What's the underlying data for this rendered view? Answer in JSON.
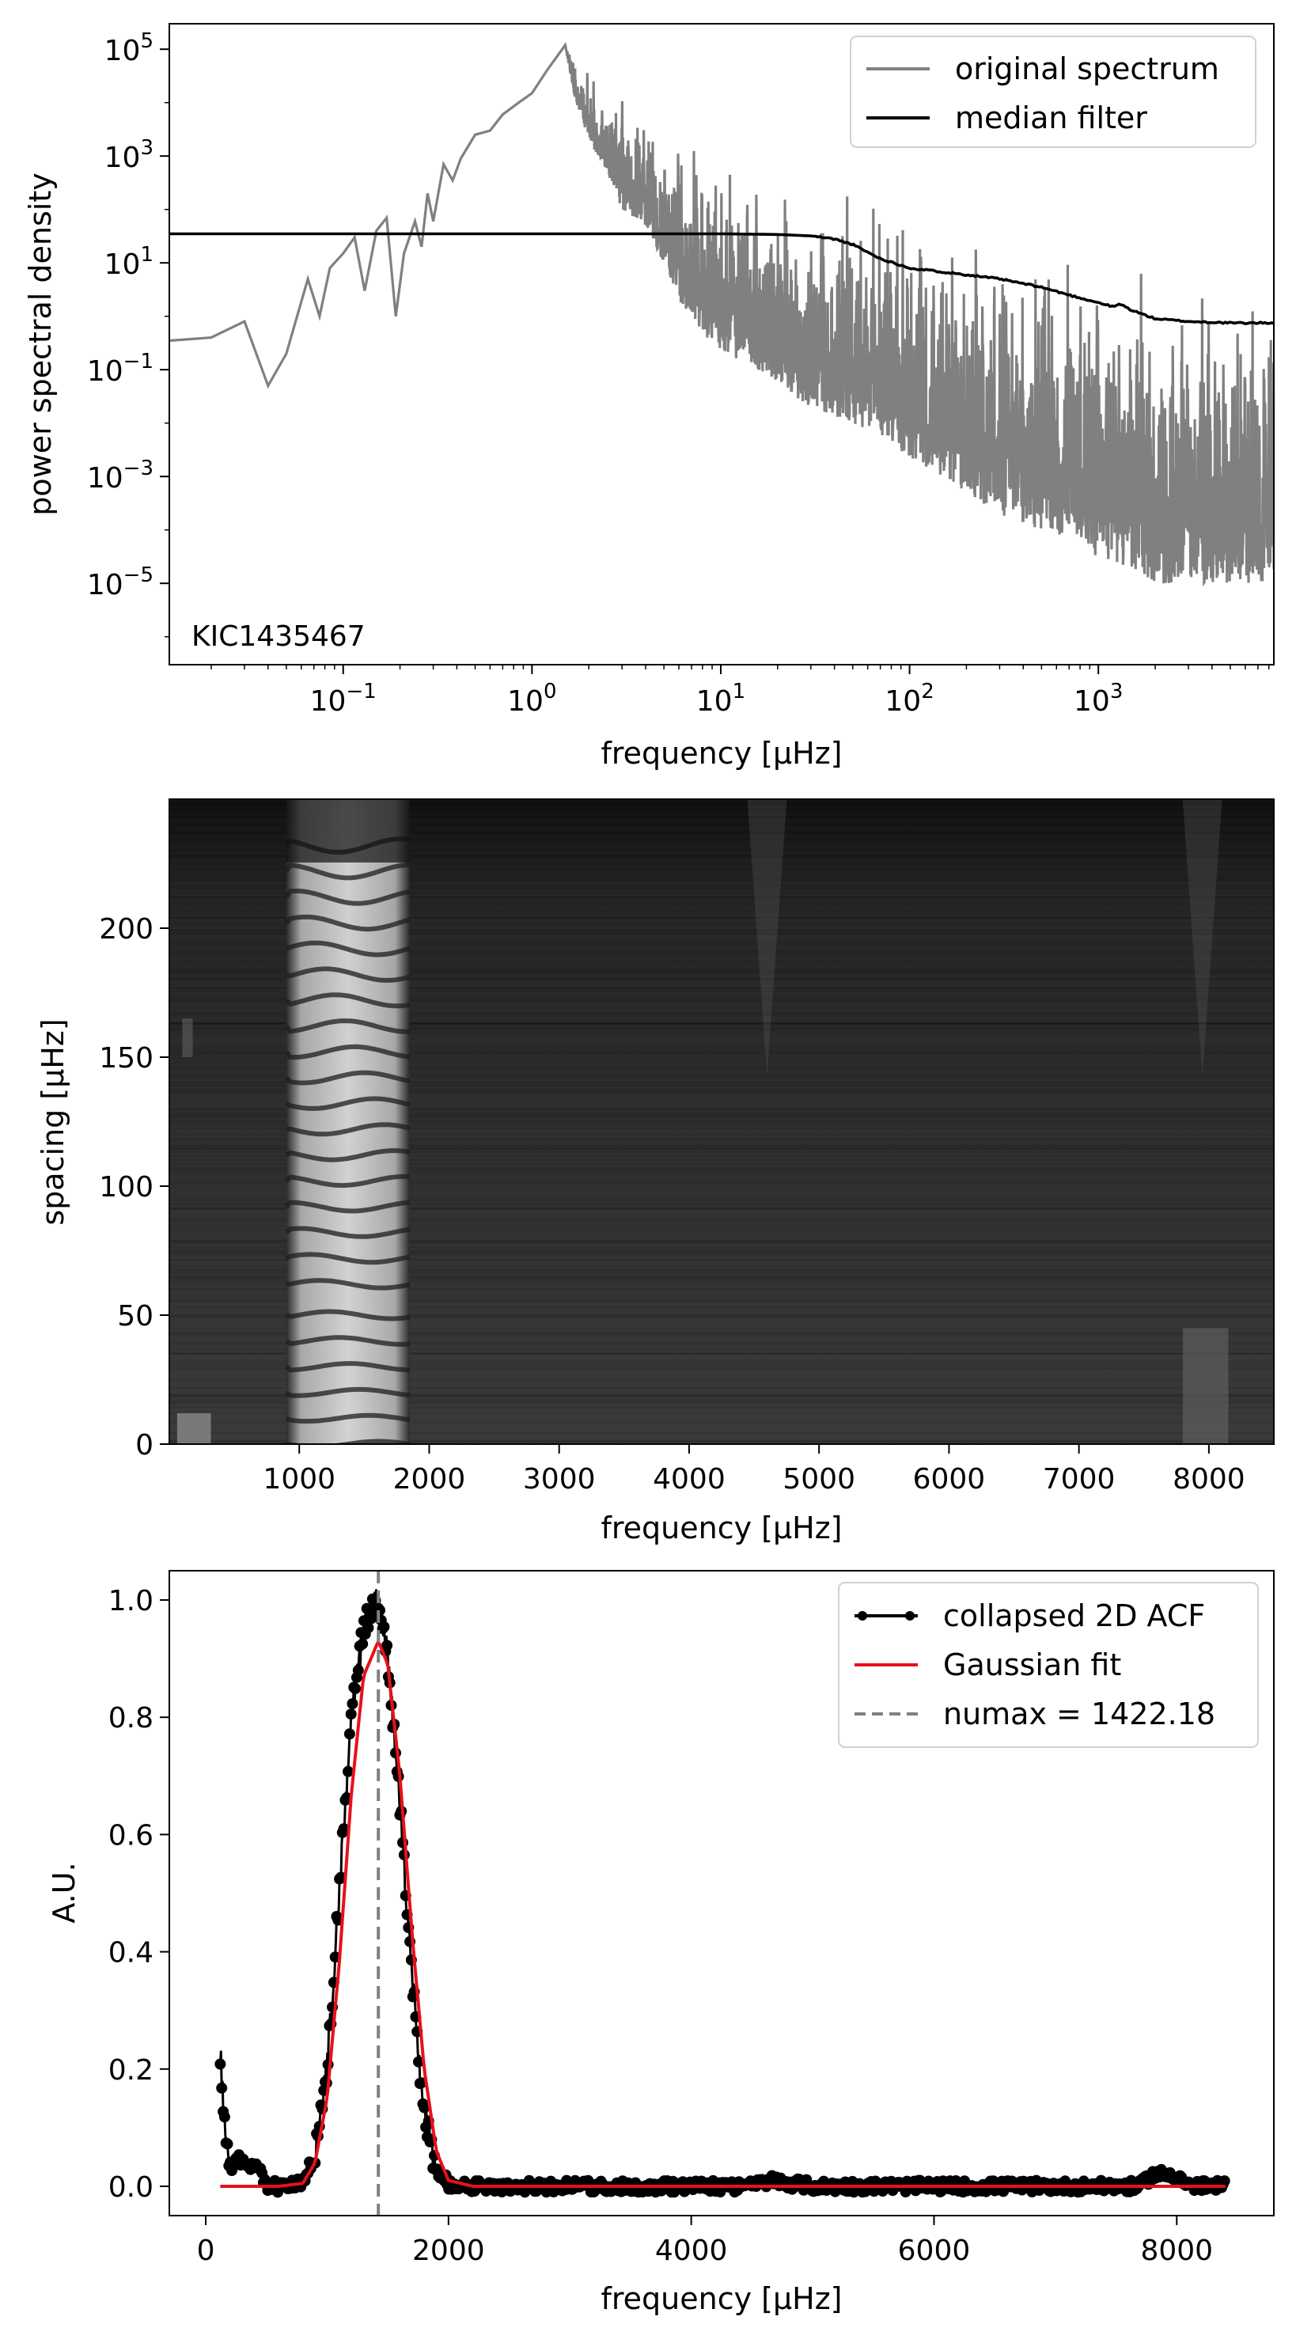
{
  "chart_data": [
    {
      "type": "line",
      "xlabel": "frequency [µHz]",
      "ylabel": "power spectral density",
      "xscale": "log",
      "yscale": "log",
      "xlim": [
        0.012,
        8500
      ],
      "ylim": [
        3e-07,
        300000.0
      ],
      "x_ticks": [
        {
          "base": "10",
          "exp": "−1",
          "value": 0.1
        },
        {
          "base": "10",
          "exp": "0",
          "value": 1
        },
        {
          "base": "10",
          "exp": "1",
          "value": 10
        },
        {
          "base": "10",
          "exp": "2",
          "value": 100
        },
        {
          "base": "10",
          "exp": "3",
          "value": 1000
        }
      ],
      "y_ticks": [
        {
          "base": "10",
          "exp": "5",
          "value": 100000
        },
        {
          "base": "10",
          "exp": "3",
          "value": 1000
        },
        {
          "base": "10",
          "exp": "1",
          "value": 10
        },
        {
          "base": "10",
          "exp": "−1",
          "value": 0.1
        },
        {
          "base": "10",
          "exp": "−3",
          "value": 0.001
        },
        {
          "base": "10",
          "exp": "−5",
          "value": 1e-05
        }
      ],
      "annotation": "KIC1435467",
      "legend": "top-right",
      "series": [
        {
          "name": "original spectrum",
          "color": "#808080",
          "x": [
            0.012,
            0.02,
            0.03,
            0.04,
            0.05,
            0.065,
            0.075,
            0.085,
            0.1,
            0.115,
            0.13,
            0.15,
            0.17,
            0.19,
            0.21,
            0.24,
            0.26,
            0.28,
            0.3,
            0.34,
            0.38,
            0.42,
            0.5,
            0.6,
            0.7,
            0.85,
            1.0,
            1.2,
            1.5,
            1.7,
            2.0,
            2.5,
            3.0,
            4.0,
            5.0,
            6.0,
            8.0,
            10,
            15,
            20,
            30,
            50,
            80,
            100,
            150,
            200,
            300,
            500,
            800,
            1000,
            1500,
            2000,
            3000,
            5000,
            8500
          ],
          "y": [
            0.35,
            0.4,
            0.8,
            0.05,
            0.2,
            5,
            1.0,
            8,
            15,
            30,
            3,
            40,
            70,
            1,
            15,
            60,
            20,
            200,
            60,
            700,
            350,
            900,
            2500,
            3000,
            6000,
            10000,
            15000,
            40000,
            120000,
            80000,
            40000,
            20000,
            15000,
            8000,
            4000,
            3000,
            2000,
            1000,
            600,
            400,
            300,
            200,
            150,
            120,
            100,
            80,
            60,
            40,
            30,
            25,
            20,
            18,
            15,
            12,
            10
          ],
          "y_min_envelope": [
            0.35,
            0.4,
            0.8,
            0.05,
            0.2,
            5,
            1.0,
            8,
            15,
            30,
            3,
            40,
            70,
            1,
            15,
            60,
            20,
            200,
            60,
            700,
            350,
            900,
            2500,
            3000,
            6000,
            10000,
            15000,
            40000,
            120000,
            10000,
            2000,
            500,
            100,
            50,
            10,
            2,
            0.5,
            0.2,
            0.1,
            0.05,
            0.02,
            0.01,
            0.005,
            0.002,
            0.001,
            0.0005,
            0.0002,
            0.0001,
            5e-05,
            3e-05,
            2e-05,
            1e-05,
            1e-05,
            1e-05,
            1e-05
          ]
        },
        {
          "name": "median filter",
          "color": "#000000",
          "x": [
            0.012,
            1,
            10,
            20,
            30,
            40,
            50,
            70,
            100,
            200,
            300,
            500,
            700,
            1000,
            1200,
            1300,
            1500,
            2000,
            3000,
            5000,
            8500
          ],
          "y": [
            35,
            35,
            35,
            34,
            32,
            28,
            22,
            12,
            8,
            6,
            5,
            3.5,
            2.5,
            1.8,
            1.5,
            1.7,
            1.3,
            0.9,
            0.8,
            0.75,
            0.75
          ]
        }
      ]
    },
    {
      "type": "heatmap",
      "xlabel": "frequency [µHz]",
      "ylabel": "spacing [µHz]",
      "xlim": [
        0,
        8500
      ],
      "ylim": [
        0,
        250
      ],
      "x_ticks": [
        1000,
        2000,
        3000,
        4000,
        5000,
        6000,
        7000,
        8000
      ],
      "y_ticks": [
        0,
        50,
        100,
        150,
        200
      ],
      "colormap": "gray",
      "bright_band": {
        "x_range": [
          900,
          1850
        ],
        "ridge_spacings": [
          0,
          10,
          20,
          30,
          40,
          50,
          62,
          72,
          82,
          92,
          102,
          112,
          122,
          132,
          142,
          152,
          162,
          172,
          182,
          192,
          202,
          212,
          222,
          232
        ]
      }
    },
    {
      "type": "line",
      "xlabel": "frequency [µHz]",
      "ylabel": "A.U.",
      "xlim": [
        -300,
        8800
      ],
      "ylim": [
        -0.05,
        1.05
      ],
      "x_ticks": [
        0,
        2000,
        4000,
        6000,
        8000
      ],
      "y_ticks": [
        0.0,
        0.2,
        0.4,
        0.6,
        0.8,
        1.0
      ],
      "legend": "top-right",
      "series": [
        {
          "name": "collapsed 2D ACF",
          "color": "#000000",
          "marker": "circle",
          "x": [
            120,
            140,
            160,
            180,
            200,
            250,
            300,
            350,
            400,
            450,
            500,
            600,
            700,
            800,
            900,
            1000,
            1100,
            1200,
            1300,
            1400,
            1450,
            1500,
            1600,
            1700,
            1800,
            1900,
            2000,
            2100,
            2500,
            3000,
            3500,
            4000,
            4500,
            4650,
            5000,
            6000,
            7000,
            7700,
            7800,
            8000,
            8100,
            8400
          ],
          "y": [
            0.23,
            0.15,
            0.1,
            0.05,
            0.03,
            0.05,
            0.04,
            0.03,
            0.035,
            0.03,
            0.0,
            0.0,
            0.0,
            0.01,
            0.05,
            0.2,
            0.5,
            0.8,
            0.95,
            1.0,
            0.98,
            0.9,
            0.65,
            0.35,
            0.12,
            0.03,
            0.005,
            0.0,
            0.0,
            0.0,
            0.0,
            0.0,
            0.0,
            0.01,
            0.0,
            0.0,
            0.0,
            0.0,
            0.02,
            0.02,
            0.0,
            0.0
          ]
        },
        {
          "name": "Gaussian fit",
          "color": "#e8101a",
          "x": [
            120,
            600,
            800,
            900,
            1000,
            1100,
            1200,
            1300,
            1422,
            1500,
            1600,
            1700,
            1800,
            1900,
            2000,
            2200,
            8400
          ],
          "y": [
            0.0,
            0.0,
            0.005,
            0.04,
            0.15,
            0.38,
            0.67,
            0.87,
            0.93,
            0.89,
            0.7,
            0.43,
            0.2,
            0.06,
            0.01,
            0.0,
            0.0
          ]
        },
        {
          "name": "numax = 1422.18",
          "color": "#808080",
          "style": "dashed",
          "vline_x": 1422.18
        }
      ]
    }
  ]
}
